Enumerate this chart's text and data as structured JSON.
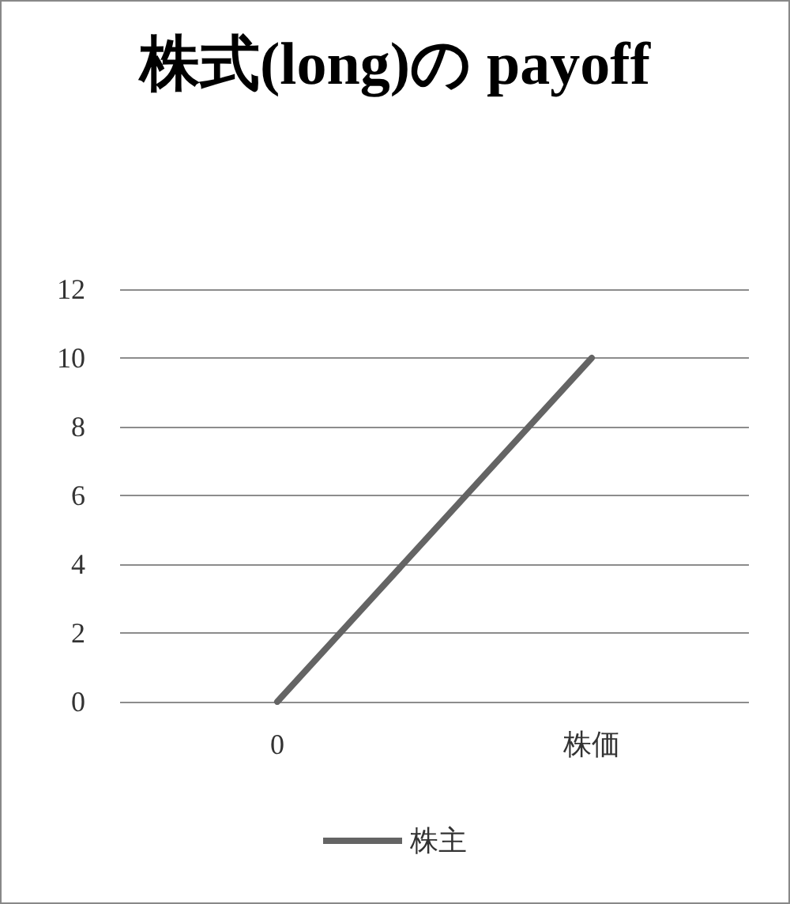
{
  "chart_data": {
    "type": "line",
    "title": "株式(long)の payoff",
    "categories": [
      "0",
      "株価"
    ],
    "series": [
      {
        "name": "株主",
        "color": "#646464",
        "values": [
          0,
          10
        ]
      }
    ],
    "ylim": [
      0,
      12
    ],
    "yticks": [
      0,
      2,
      4,
      6,
      8,
      10,
      12
    ],
    "grid": "y",
    "legend": "bottom",
    "marker": "none",
    "line_style": "solid"
  }
}
